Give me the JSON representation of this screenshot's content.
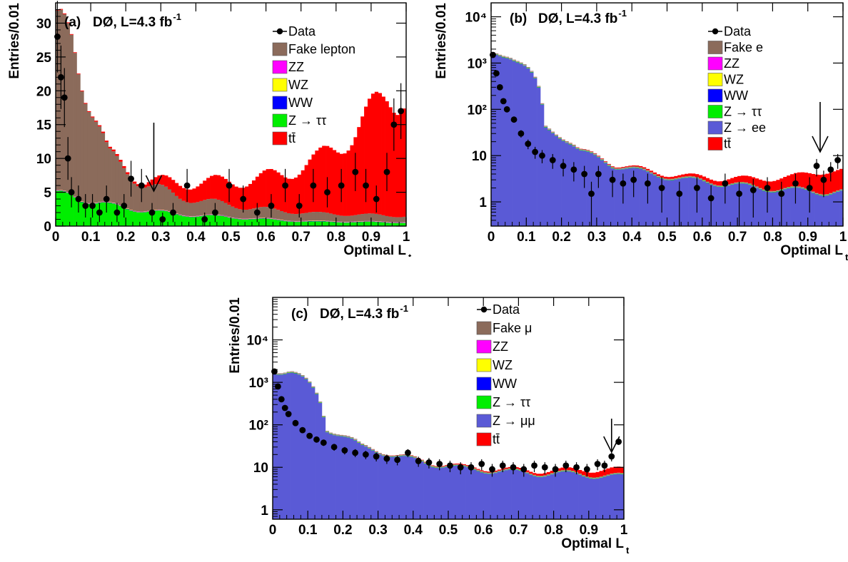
{
  "colors": {
    "fake": "#8b6b5b",
    "zz": "#ff00ff",
    "wz": "#ffff00",
    "ww": "#0000ff",
    "ztt": "#00ee00",
    "zll": "#5a5ad6",
    "tt": "#ff0000",
    "data": "#000000"
  },
  "chart_data": [
    {
      "type": "bar",
      "stacked": true,
      "scale": "linear",
      "panel_label": "(a)",
      "experiment": "DØ, L=4.3 fb",
      "lumi_exponent": "-1",
      "xlabel": "Optimal L",
      "xlabel_sub": "t",
      "ylabel": "Entries/0.01",
      "xlim": [
        0,
        1
      ],
      "ylim": [
        0,
        33
      ],
      "xticks": [
        "0",
        "0.1",
        "0.2",
        "0.3",
        "0.4",
        "0.5",
        "0.6",
        "0.7",
        "0.8",
        "0.9",
        "1"
      ],
      "yticks": [
        {
          "v": 0,
          "t": "0"
        },
        {
          "v": 5,
          "t": "5"
        },
        {
          "v": 10,
          "t": "10"
        },
        {
          "v": 15,
          "t": "15"
        },
        {
          "v": 20,
          "t": "20"
        },
        {
          "v": 25,
          "t": "25"
        },
        {
          "v": 30,
          "t": "30"
        }
      ],
      "arrow_x": 0.28,
      "legend": [
        "Data",
        "Fake lepton",
        "ZZ",
        "WZ",
        "WW",
        "Z → ττ",
        "tt̄"
      ],
      "legend_keys": [
        "data",
        "fake",
        "zz",
        "wz",
        "ww",
        "ztt",
        "tt"
      ],
      "stack": {
        "ztt": [
          4.5,
          3.0,
          2.3,
          1.7,
          1.4,
          1.1,
          0.8,
          0.6,
          0.6,
          0.5
        ],
        "fake": [
          23.0,
          7.0,
          4.0,
          2.5,
          2.0,
          1.5,
          1.3,
          1.1,
          1.0,
          0.9
        ],
        "tt": [
          0.1,
          0.2,
          0.4,
          2.0,
          3.0,
          4.0,
          5.5,
          8.0,
          12.0,
          18.0
        ]
      },
      "data_points": [
        [
          0.005,
          28.0
        ],
        [
          0.015,
          22.0
        ],
        [
          0.025,
          19.0
        ],
        [
          0.035,
          10.0
        ],
        [
          0.045,
          5.0
        ],
        [
          0.065,
          4.0
        ],
        [
          0.085,
          3.0
        ],
        [
          0.105,
          3.0
        ],
        [
          0.125,
          2.0
        ],
        [
          0.145,
          4.0
        ],
        [
          0.175,
          2.0
        ],
        [
          0.195,
          3.0
        ],
        [
          0.215,
          7.0
        ],
        [
          0.245,
          6.0
        ],
        [
          0.275,
          2.0
        ],
        [
          0.305,
          1.0
        ],
        [
          0.335,
          2.0
        ],
        [
          0.375,
          6.0
        ],
        [
          0.425,
          1.0
        ],
        [
          0.455,
          2.0
        ],
        [
          0.495,
          6.0
        ],
        [
          0.535,
          4.0
        ],
        [
          0.575,
          2.0
        ],
        [
          0.615,
          3.0
        ],
        [
          0.655,
          6.0
        ],
        [
          0.695,
          3.0
        ],
        [
          0.735,
          6.0
        ],
        [
          0.775,
          5.0
        ],
        [
          0.815,
          6.0
        ],
        [
          0.855,
          8.0
        ],
        [
          0.885,
          6.0
        ],
        [
          0.915,
          4.0
        ],
        [
          0.945,
          8.0
        ],
        [
          0.965,
          15.0
        ],
        [
          0.985,
          17.0
        ]
      ]
    },
    {
      "type": "bar",
      "stacked": true,
      "scale": "log",
      "panel_label": "(b)",
      "experiment": "DØ, L=4.3 fb",
      "lumi_exponent": "-1",
      "xlabel": "Optimal L",
      "xlabel_sub": "t",
      "ylabel": "Entries/0.01",
      "xlim": [
        0,
        1
      ],
      "ylim": [
        0.3,
        20000
      ],
      "xticks": [
        "0",
        "0.1",
        "0.2",
        "0.3",
        "0.4",
        "0.5",
        "0.6",
        "0.7",
        "0.8",
        "0.9",
        "1"
      ],
      "yticks": [
        {
          "v": 1,
          "t": "1"
        },
        {
          "v": 10,
          "t": "10"
        },
        {
          "v": 100,
          "t": "10²"
        },
        {
          "v": 1000,
          "t": "10³"
        },
        {
          "v": 10000,
          "t": "10⁴"
        }
      ],
      "arrow_x": 0.935,
      "legend": [
        "Data",
        "Fake e",
        "ZZ",
        "WZ",
        "WW",
        "Z → ττ",
        "Z → ee",
        "tt̄"
      ],
      "legend_keys": [
        "data",
        "fake",
        "zz",
        "wz",
        "ww",
        "ztt",
        "zll",
        "tt"
      ],
      "stack": {
        "zll": [
          1500,
          40,
          12,
          6,
          4,
          3,
          2.5,
          2,
          1.8,
          1.6
        ],
        "tt": [
          0.05,
          0.1,
          0.15,
          0.2,
          0.3,
          0.4,
          0.6,
          1.0,
          1.5,
          3.0
        ]
      },
      "data_points": [
        [
          0.005,
          1500
        ],
        [
          0.015,
          600
        ],
        [
          0.025,
          300
        ],
        [
          0.035,
          150
        ],
        [
          0.045,
          100
        ],
        [
          0.065,
          60
        ],
        [
          0.085,
          30
        ],
        [
          0.105,
          18
        ],
        [
          0.125,
          12
        ],
        [
          0.145,
          10
        ],
        [
          0.175,
          8
        ],
        [
          0.205,
          6
        ],
        [
          0.235,
          5
        ],
        [
          0.265,
          4
        ],
        [
          0.285,
          1.5
        ],
        [
          0.305,
          4
        ],
        [
          0.345,
          3
        ],
        [
          0.375,
          2.5
        ],
        [
          0.405,
          3
        ],
        [
          0.445,
          2.5
        ],
        [
          0.485,
          2
        ],
        [
          0.535,
          1.5
        ],
        [
          0.585,
          2
        ],
        [
          0.625,
          1.2
        ],
        [
          0.665,
          2.5
        ],
        [
          0.705,
          1.5
        ],
        [
          0.745,
          1.8
        ],
        [
          0.785,
          2
        ],
        [
          0.825,
          1.5
        ],
        [
          0.865,
          2.5
        ],
        [
          0.905,
          2
        ],
        [
          0.925,
          6
        ],
        [
          0.945,
          3
        ],
        [
          0.965,
          5
        ],
        [
          0.985,
          8
        ]
      ]
    },
    {
      "type": "bar",
      "stacked": true,
      "scale": "log",
      "panel_label": "(c)",
      "experiment": "DØ, L=4.3 fb",
      "lumi_exponent": "-1",
      "xlabel": "Optimal L",
      "xlabel_sub": "t",
      "ylabel": "Entries/0.01",
      "xlim": [
        0,
        1
      ],
      "ylim": [
        0.6,
        100000
      ],
      "xticks": [
        "0",
        "0.1",
        "0.2",
        "0.3",
        "0.4",
        "0.5",
        "0.6",
        "0.7",
        "0.8",
        "0.9",
        "1"
      ],
      "yticks": [
        {
          "v": 1,
          "t": "1"
        },
        {
          "v": 10,
          "t": "10"
        },
        {
          "v": 100,
          "t": "10²"
        },
        {
          "v": 1000,
          "t": "10³"
        },
        {
          "v": 10000,
          "t": "10⁴"
        }
      ],
      "arrow_x": 0.965,
      "legend": [
        "Data",
        "Fake μ",
        "ZZ",
        "WZ",
        "WW",
        "Z → ττ",
        "Z → μμ",
        "tt̄"
      ],
      "legend_keys": [
        "data",
        "fake",
        "zz",
        "wz",
        "ww",
        "ztt",
        "zll",
        "tt"
      ],
      "stack": {
        "zll": [
          1800,
          80,
          30,
          18,
          12,
          9,
          8,
          7,
          7,
          6
        ],
        "tt": [
          0.05,
          0.1,
          0.15,
          0.2,
          0.3,
          0.4,
          0.5,
          0.8,
          1.2,
          2.5
        ]
      },
      "data_points": [
        [
          0.005,
          1800
        ],
        [
          0.015,
          800
        ],
        [
          0.025,
          400
        ],
        [
          0.035,
          250
        ],
        [
          0.045,
          180
        ],
        [
          0.065,
          110
        ],
        [
          0.085,
          75
        ],
        [
          0.105,
          55
        ],
        [
          0.125,
          45
        ],
        [
          0.145,
          38
        ],
        [
          0.175,
          30
        ],
        [
          0.205,
          25
        ],
        [
          0.235,
          22
        ],
        [
          0.265,
          20
        ],
        [
          0.295,
          18
        ],
        [
          0.325,
          16
        ],
        [
          0.355,
          15
        ],
        [
          0.385,
          22
        ],
        [
          0.415,
          14
        ],
        [
          0.445,
          13
        ],
        [
          0.475,
          12
        ],
        [
          0.505,
          11
        ],
        [
          0.535,
          10
        ],
        [
          0.565,
          10
        ],
        [
          0.595,
          12
        ],
        [
          0.625,
          9
        ],
        [
          0.655,
          11
        ],
        [
          0.685,
          10
        ],
        [
          0.715,
          9
        ],
        [
          0.745,
          11
        ],
        [
          0.775,
          10
        ],
        [
          0.805,
          9
        ],
        [
          0.835,
          11
        ],
        [
          0.865,
          10
        ],
        [
          0.895,
          9
        ],
        [
          0.925,
          12
        ],
        [
          0.945,
          11
        ],
        [
          0.965,
          18
        ],
        [
          0.985,
          40
        ]
      ]
    }
  ]
}
